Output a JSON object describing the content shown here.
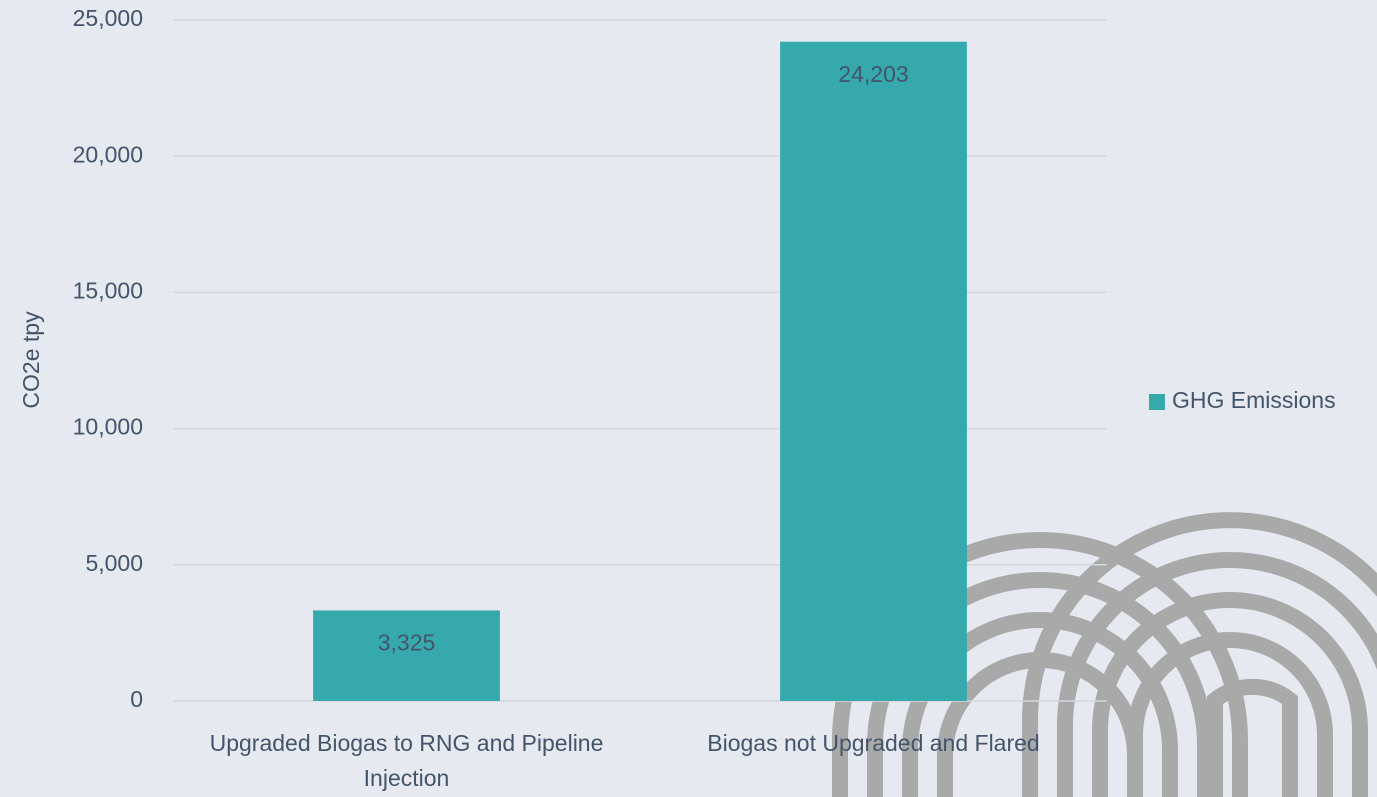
{
  "chart_data": {
    "type": "bar",
    "y_axis_label": "CO2e tpy",
    "categories": [
      "Upgraded Biogas to RNG and Pipeline Injection",
      "Biogas not Upgraded and Flared"
    ],
    "series": [
      {
        "name": "GHG Emissions",
        "color": "#36a9ad",
        "values": [
          3325,
          24203
        ],
        "value_labels": [
          "3,325",
          "24,203"
        ]
      }
    ],
    "ylim": [
      0,
      25000
    ],
    "yticks": [
      0,
      {
        "value": 5000,
        "label": "5,000"
      },
      {
        "value": 10000,
        "label": "10,000"
      },
      {
        "value": 15000,
        "label": "15,000"
      },
      {
        "value": 20000,
        "label": "20,000"
      },
      {
        "value": 25000,
        "label": "25,000"
      }
    ],
    "grid": true,
    "legend": "right"
  }
}
